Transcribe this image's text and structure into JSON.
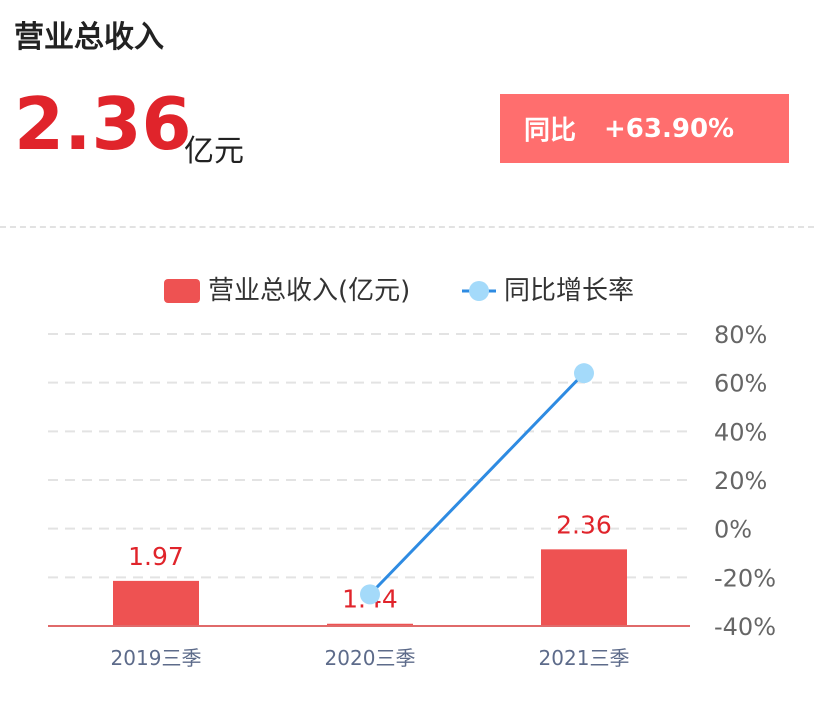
{
  "header": {
    "title": "营业总收入",
    "value": "2.36",
    "unit": "亿元",
    "yoy_label": "同比",
    "yoy_value": "+63.90%"
  },
  "colors": {
    "bar": "#ee5252",
    "line": "#2e8be2",
    "point": "#a4dafa",
    "badge": "#ff6e6e",
    "value_red": "#e0242b"
  },
  "chart_data": {
    "type": "bar",
    "categories": [
      "2019三季",
      "2020三季",
      "2021三季"
    ],
    "series": [
      {
        "name": "营业总收入(亿元)",
        "type": "bar",
        "values": [
          1.97,
          1.44,
          2.36
        ]
      },
      {
        "name": "同比增长率",
        "type": "line",
        "axis": "right",
        "values": [
          null,
          -27,
          63.9
        ]
      }
    ],
    "y_right": {
      "ticks": [
        "80%",
        "60%",
        "40%",
        "20%",
        "0%",
        "-20%",
        "-40%"
      ],
      "range": [
        -40,
        80
      ]
    },
    "grid": true,
    "legend": "top"
  }
}
